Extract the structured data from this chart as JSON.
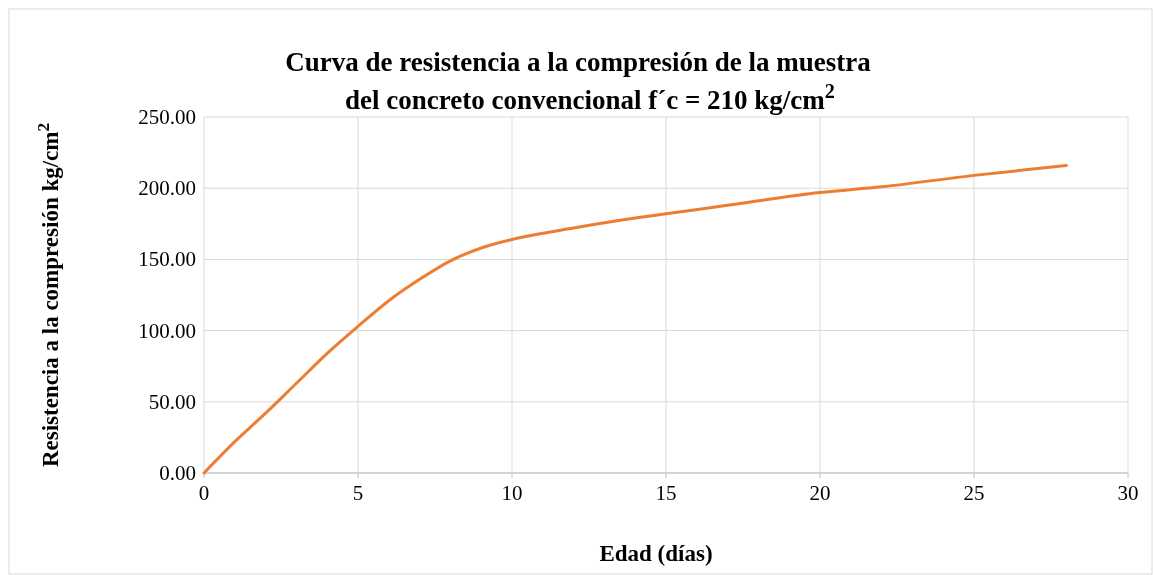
{
  "chart_data": {
    "type": "line",
    "title": "Curva de resistencia a la compresión de la muestra del concreto convencional f´c = 210 kg/cm$^{2}$",
    "xlabel": "Edad (días)",
    "ylabel": "Resistencia a la compresión kg/cm$^{2}$",
    "x": [
      0,
      1,
      2,
      3,
      4,
      5,
      6,
      7,
      8,
      9,
      10,
      12,
      14,
      15,
      17,
      20,
      22,
      25,
      28
    ],
    "series": [
      {
        "color": "#ed7d31",
        "values": [
          0,
          22,
          42,
          63,
          84,
          103,
          121,
          136,
          149,
          158,
          164,
          172,
          179,
          182,
          188,
          197,
          201,
          209,
          216
        ]
      }
    ],
    "xlim": [
      0,
      30
    ],
    "xticks": [
      0,
      5,
      10,
      15,
      20,
      25,
      30
    ],
    "ylim": [
      0,
      250
    ],
    "yticks": [
      {
        "value": 0,
        "label": "0.00"
      },
      {
        "value": 50,
        "label": "50.00"
      },
      {
        "value": 100,
        "label": "100.00"
      },
      {
        "value": 150,
        "label": "150.00"
      },
      {
        "value": 200,
        "label": "200.00"
      },
      {
        "value": 250,
        "label": "250.00"
      }
    ],
    "grid": true
  }
}
